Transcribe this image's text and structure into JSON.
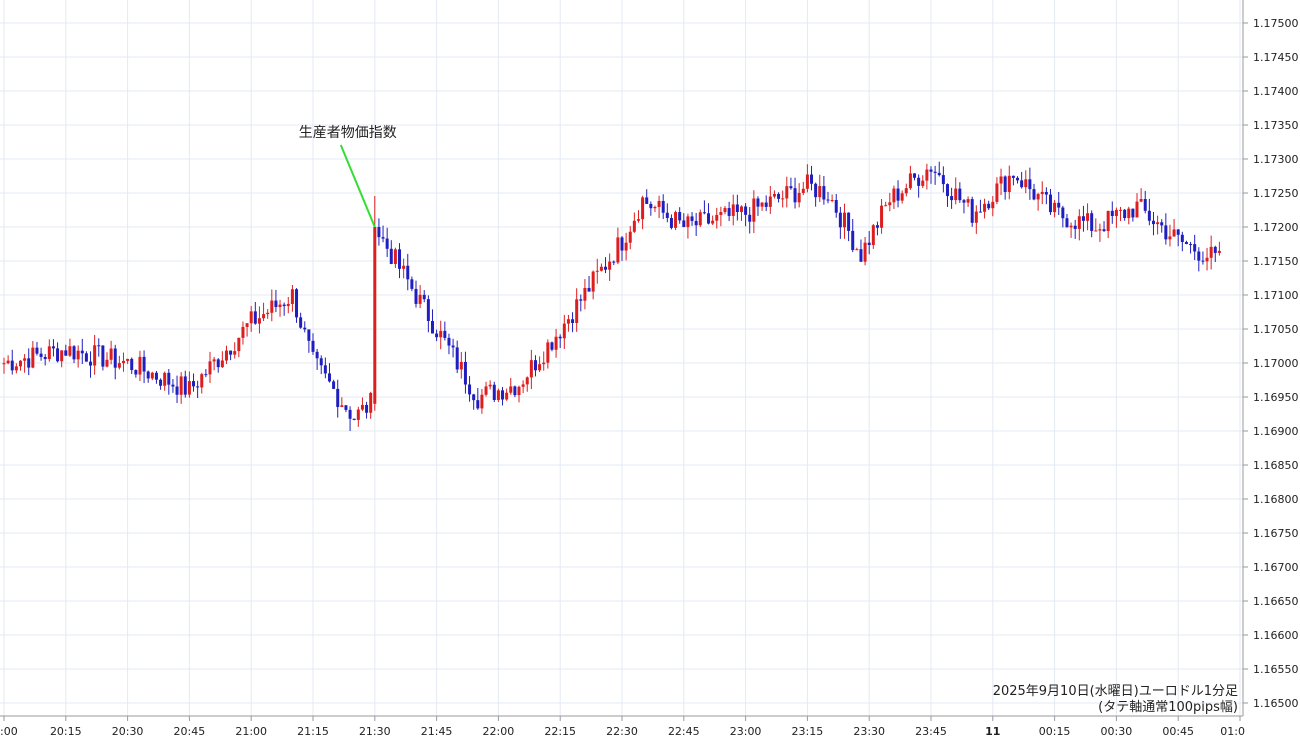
{
  "chart_data": {
    "type": "candlestick",
    "caption_line1": "2025年9月10日(水曜日)ユーロドル1分足",
    "caption_line2": "(タテ軸通常100pips幅)",
    "annotation": {
      "text": "生産者物価指数",
      "at_time": "21:30",
      "price": 1.172
    },
    "ylim": [
      1.1648,
      1.1753
    ],
    "y_ticks": [
      "1.17500",
      "1.17450",
      "1.17400",
      "1.17350",
      "1.17300",
      "1.17250",
      "1.17200",
      "1.17150",
      "1.17100",
      "1.17050",
      "1.17000",
      "1.16950",
      "1.16900",
      "1.16850",
      "1.16800",
      "1.16750",
      "1.16700",
      "1.16650",
      "1.16600",
      "1.16550",
      "1.16500"
    ],
    "x_ticks": [
      ":00",
      "20:15",
      "20:30",
      "20:45",
      "21:00",
      "21:15",
      "21:30",
      "21:45",
      "22:00",
      "22:15",
      "22:30",
      "22:45",
      "23:00",
      "23:15",
      "23:30",
      "23:45",
      "11",
      "00:15",
      "00:30",
      "00:45",
      "01:0"
    ],
    "grid": true,
    "colors": {
      "up": "#dd1e1e",
      "down": "#1f1fbf",
      "grid": "#e3e9f3",
      "annotation_line": "#33dd33",
      "axis": "#9a9a9a"
    },
    "key_points": [
      {
        "time": "20:00",
        "price": 1.17
      },
      {
        "time": "20:15",
        "price": 1.1702
      },
      {
        "time": "20:30",
        "price": 1.17
      },
      {
        "time": "20:45",
        "price": 1.1696
      },
      {
        "time": "21:00",
        "price": 1.1706
      },
      {
        "time": "21:10",
        "price": 1.171
      },
      {
        "time": "21:15",
        "price": 1.17
      },
      {
        "time": "21:25",
        "price": 1.1692
      },
      {
        "time": "21:29",
        "price": 1.1694
      },
      {
        "time": "21:30",
        "price": 1.172
      },
      {
        "time": "21:45",
        "price": 1.1705
      },
      {
        "time": "21:55",
        "price": 1.1695
      },
      {
        "time": "22:05",
        "price": 1.1697
      },
      {
        "time": "22:15",
        "price": 1.1705
      },
      {
        "time": "22:30",
        "price": 1.1718
      },
      {
        "time": "22:35",
        "price": 1.1724
      },
      {
        "time": "22:45",
        "price": 1.172
      },
      {
        "time": "23:00",
        "price": 1.1722
      },
      {
        "time": "23:15",
        "price": 1.1726
      },
      {
        "time": "23:20",
        "price": 1.1725
      },
      {
        "time": "23:28",
        "price": 1.1716
      },
      {
        "time": "23:35",
        "price": 1.1724
      },
      {
        "time": "23:45",
        "price": 1.1729
      },
      {
        "time": "23:55",
        "price": 1.1722
      },
      {
        "time": "00:05",
        "price": 1.1728
      },
      {
        "time": "00:15",
        "price": 1.1722
      },
      {
        "time": "00:25",
        "price": 1.172
      },
      {
        "time": "00:35",
        "price": 1.1723
      },
      {
        "time": "00:45",
        "price": 1.1718
      },
      {
        "time": "00:55",
        "price": 1.1715
      }
    ]
  }
}
